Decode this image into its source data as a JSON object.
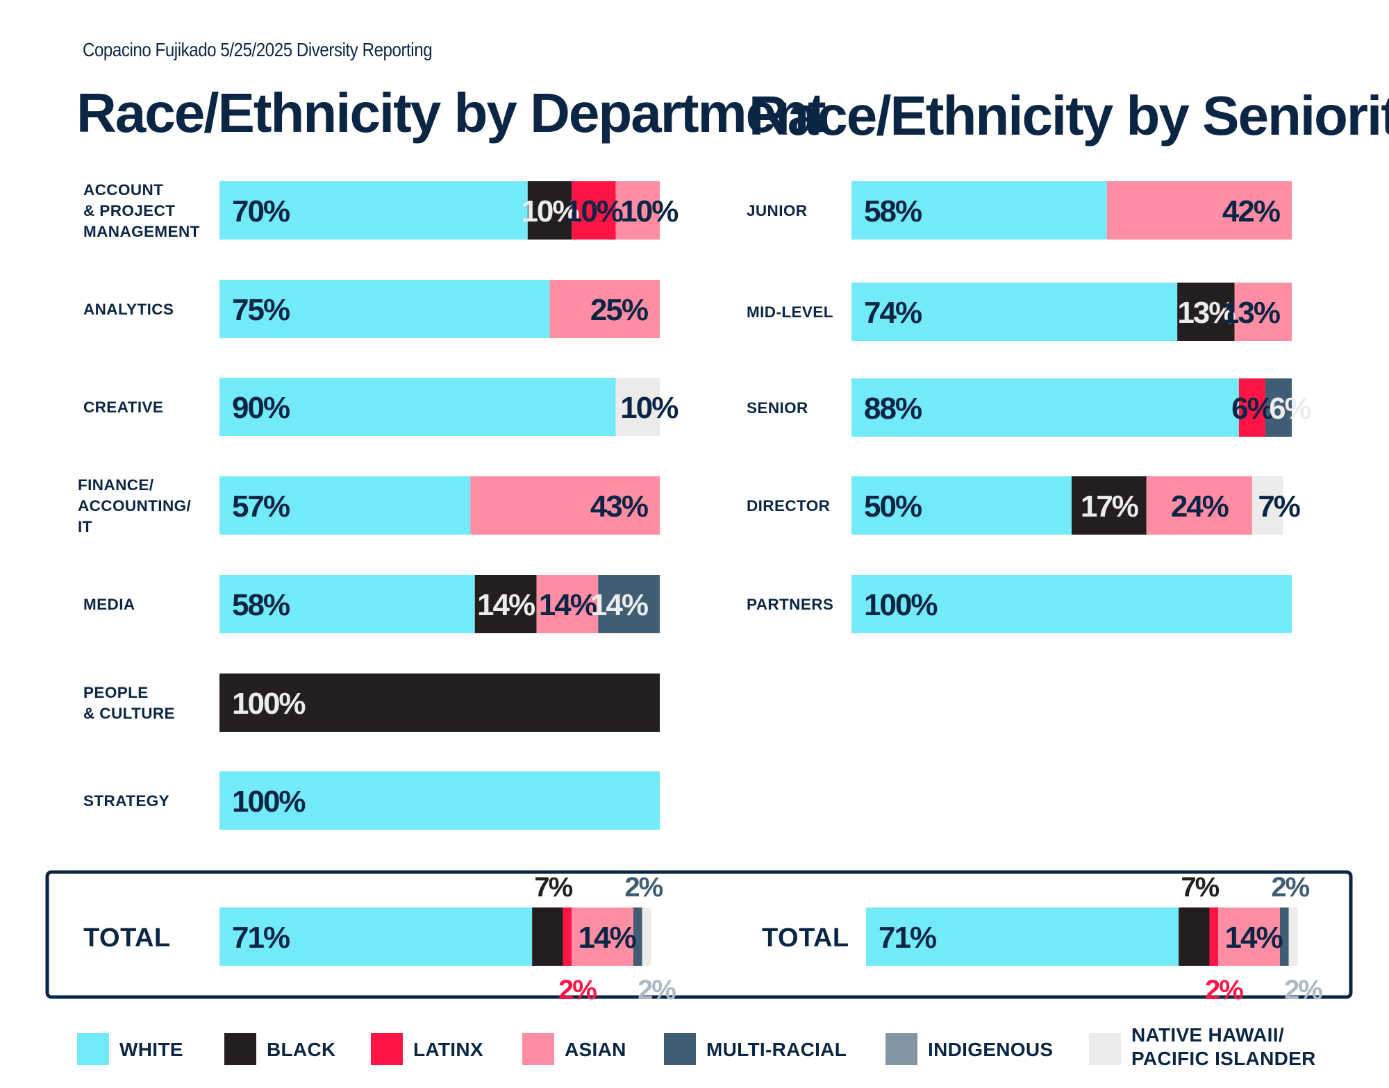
{
  "header": "Copacino Fujikado 5/25/2025 Diversity Reporting",
  "colors": {
    "white": "#72EAF8",
    "black": "#231F20",
    "latinx": "#FE1546",
    "asian": "#FF8DA3",
    "multi": "#405E73",
    "indigenous": "#8496A3",
    "native_hawaii": "#EBEBEB",
    "navy": "#0B2545"
  },
  "legend": [
    {
      "key": "white",
      "label": "WHITE"
    },
    {
      "key": "black",
      "label": "BLACK"
    },
    {
      "key": "latinx",
      "label": "LATINX"
    },
    {
      "key": "asian",
      "label": "ASIAN"
    },
    {
      "key": "multi",
      "label": "MULTI-RACIAL"
    },
    {
      "key": "indigenous",
      "label": "INDIGENOUS"
    },
    {
      "key": "native_hawaii",
      "label": "NATIVE HAWAII/ PACIFIC ISLANDER"
    }
  ],
  "chart_data": [
    {
      "type": "bar",
      "orientation": "horizontal-stacked-100",
      "title": "Race/Ethnicity by Department",
      "categories": [
        "ACCOUNT & PROJECT MANAGEMENT",
        "ANALYTICS",
        "CREATIVE",
        "FINANCE/ ACCOUNTING/ IT",
        "MEDIA",
        "PEOPLE & CULTURE",
        "STRATEGY"
      ],
      "series": [
        {
          "name": "WHITE",
          "key": "white",
          "values": [
            70,
            75,
            90,
            57,
            58,
            0,
            100
          ]
        },
        {
          "name": "BLACK",
          "key": "black",
          "values": [
            10,
            0,
            0,
            0,
            14,
            100,
            0
          ]
        },
        {
          "name": "LATINX",
          "key": "latinx",
          "values": [
            10,
            0,
            0,
            0,
            0,
            0,
            0
          ]
        },
        {
          "name": "ASIAN",
          "key": "asian",
          "values": [
            10,
            25,
            0,
            43,
            14,
            0,
            0
          ]
        },
        {
          "name": "MULTI-RACIAL",
          "key": "multi",
          "values": [
            0,
            0,
            0,
            0,
            14,
            0,
            0
          ]
        },
        {
          "name": "INDIGENOUS",
          "key": "indigenous",
          "values": [
            0,
            0,
            0,
            0,
            0,
            0,
            0
          ]
        },
        {
          "name": "NATIVE HAWAII/ PACIFIC ISLANDER",
          "key": "native_hawaii",
          "values": [
            0,
            0,
            10,
            0,
            0,
            0,
            0
          ]
        }
      ],
      "total": {
        "label": "TOTAL",
        "values": {
          "white": 71,
          "black": 7,
          "latinx": 2,
          "asian": 14,
          "multi": 2,
          "indigenous": 0,
          "native_hawaii": 2
        }
      },
      "xlim": [
        0,
        100
      ]
    },
    {
      "type": "bar",
      "orientation": "horizontal-stacked-100",
      "title": "Race/Ethnicity by Seniority",
      "categories": [
        "JUNIOR",
        "MID-LEVEL",
        "SENIOR",
        "DIRECTOR",
        "PARTNERS"
      ],
      "series": [
        {
          "name": "WHITE",
          "key": "white",
          "values": [
            58,
            74,
            88,
            50,
            100
          ]
        },
        {
          "name": "BLACK",
          "key": "black",
          "values": [
            0,
            13,
            0,
            17,
            0
          ]
        },
        {
          "name": "LATINX",
          "key": "latinx",
          "values": [
            0,
            0,
            6,
            0,
            0
          ]
        },
        {
          "name": "ASIAN",
          "key": "asian",
          "values": [
            42,
            13,
            0,
            24,
            0
          ]
        },
        {
          "name": "MULTI-RACIAL",
          "key": "multi",
          "values": [
            0,
            0,
            6,
            0,
            0
          ]
        },
        {
          "name": "INDIGENOUS",
          "key": "indigenous",
          "values": [
            0,
            0,
            0,
            0,
            0
          ]
        },
        {
          "name": "NATIVE HAWAII/ PACIFIC ISLANDER",
          "key": "native_hawaii",
          "values": [
            0,
            0,
            0,
            7,
            0
          ]
        }
      ],
      "total": {
        "label": "TOTAL",
        "values": {
          "white": 71,
          "black": 7,
          "latinx": 2,
          "asian": 14,
          "multi": 2,
          "indigenous": 0,
          "native_hawaii": 2
        }
      },
      "xlim": [
        0,
        100
      ]
    }
  ]
}
